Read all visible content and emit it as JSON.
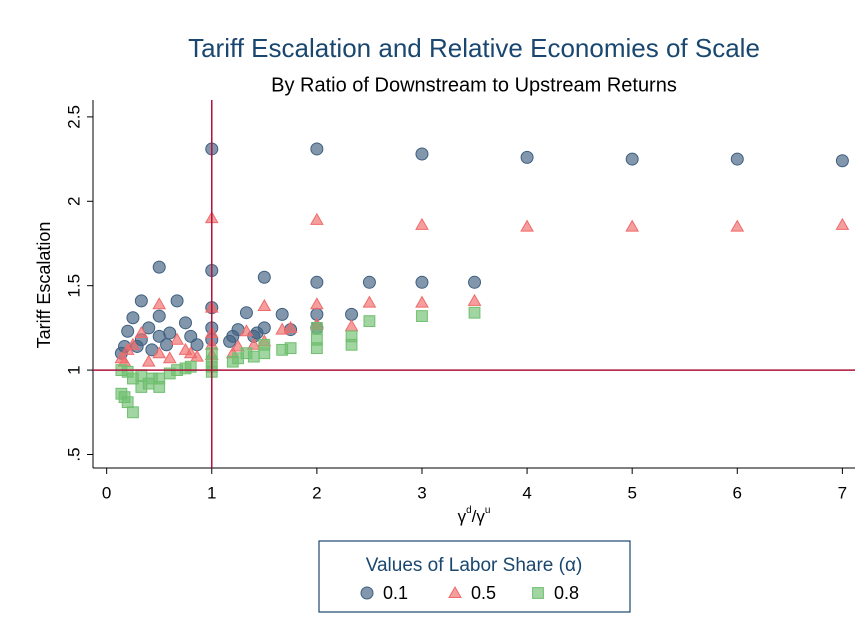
{
  "chart_data": {
    "type": "scatter",
    "title": "Tariff Escalation and Relative Economies of Scale",
    "subtitle": "By Ratio of Downstream to Upstream Returns",
    "ylabel": "Tariff Escalation",
    "xlabel": {
      "base1": "γ",
      "sup1": "d",
      "base2": "/γ",
      "sup2": "u"
    },
    "legend_title": "Values of Labor Share (α)",
    "legend_position": "bottom",
    "xlim": [
      -0.13,
      7.12
    ],
    "ylim": [
      0.42,
      2.6
    ],
    "xticks": [
      0,
      1,
      2,
      3,
      4,
      5,
      6,
      7
    ],
    "yticks": [
      {
        "value": 0.5,
        "label": ".5"
      },
      1,
      1.5,
      2,
      2.5
    ],
    "xline": 1,
    "yline": 1,
    "refline_color": "#b0103a",
    "series": [
      {
        "name": "0.1",
        "color": "#3f5f80",
        "marker": "circle",
        "x": [
          1,
          1,
          1,
          1,
          1,
          2,
          2,
          2,
          2,
          3,
          3,
          4,
          5,
          6,
          7,
          3.5,
          2.5,
          1.5,
          1.5,
          0.5,
          0.5,
          0.5,
          0.14,
          0.17,
          0.2,
          0.25,
          0.33,
          0.4,
          0.67,
          0.75,
          0.8,
          0.6,
          0.33,
          0.43,
          0.57,
          0.86,
          0.29,
          1.33,
          1.25,
          1.2,
          1.17,
          1.67,
          1.75,
          2.33,
          1.4,
          1.43
        ],
        "values": [
          2.31,
          1.59,
          1.37,
          1.25,
          1.18,
          2.31,
          1.52,
          1.33,
          1.25,
          2.28,
          1.52,
          2.26,
          2.25,
          2.25,
          2.24,
          1.52,
          1.52,
          1.55,
          1.25,
          1.61,
          1.32,
          1.2,
          1.1,
          1.14,
          1.23,
          1.31,
          1.41,
          1.25,
          1.41,
          1.28,
          1.2,
          1.22,
          1.18,
          1.12,
          1.15,
          1.15,
          1.14,
          1.34,
          1.24,
          1.2,
          1.17,
          1.33,
          1.24,
          1.33,
          1.2,
          1.22
        ]
      },
      {
        "name": "0.5",
        "color": "#f06a6a",
        "marker": "triangle",
        "x": [
          1,
          1,
          1,
          1,
          1,
          2,
          2,
          2,
          3,
          3,
          4,
          5,
          6,
          7,
          3.5,
          2.5,
          2.33,
          1.5,
          1.5,
          1.67,
          1.75,
          1.33,
          1.25,
          0.5,
          0.5,
          0.67,
          0.75,
          0.14,
          0.17,
          0.2,
          0.25,
          0.33,
          0.4,
          0.6,
          0.8,
          0.86,
          1.2,
          1.4
        ],
        "values": [
          1.9,
          1.37,
          1.22,
          1.15,
          1.09,
          1.89,
          1.39,
          1.27,
          1.86,
          1.4,
          1.85,
          1.85,
          1.85,
          1.86,
          1.41,
          1.4,
          1.26,
          1.38,
          1.17,
          1.24,
          1.25,
          1.23,
          1.14,
          1.39,
          1.1,
          1.18,
          1.12,
          1.07,
          1.05,
          1.12,
          1.15,
          1.22,
          1.05,
          1.07,
          1.1,
          1.08,
          1.1,
          1.15
        ]
      },
      {
        "name": "0.8",
        "color": "#6fbf6f",
        "marker": "square",
        "x": [
          1,
          1,
          1,
          1,
          0.14,
          0.17,
          0.2,
          0.25,
          0.14,
          0.2,
          0.25,
          0.33,
          0.4,
          0.5,
          0.5,
          0.6,
          0.67,
          0.75,
          0.8,
          0.33,
          0.43,
          1.2,
          1.25,
          1.33,
          1.4,
          1.5,
          1.5,
          1.67,
          1.75,
          2,
          2,
          2,
          2.33,
          2.33,
          2.5,
          3,
          3.5
        ],
        "values": [
          1.1,
          1.05,
          1.02,
          0.99,
          0.86,
          0.84,
          0.81,
          0.75,
          1.0,
          0.99,
          0.95,
          0.9,
          0.92,
          0.9,
          0.95,
          0.98,
          1.0,
          1.01,
          1.02,
          0.97,
          0.95,
          1.05,
          1.07,
          1.1,
          1.08,
          1.15,
          1.1,
          1.12,
          1.13,
          1.25,
          1.18,
          1.13,
          1.2,
          1.15,
          1.29,
          1.32,
          1.34
        ]
      }
    ]
  }
}
